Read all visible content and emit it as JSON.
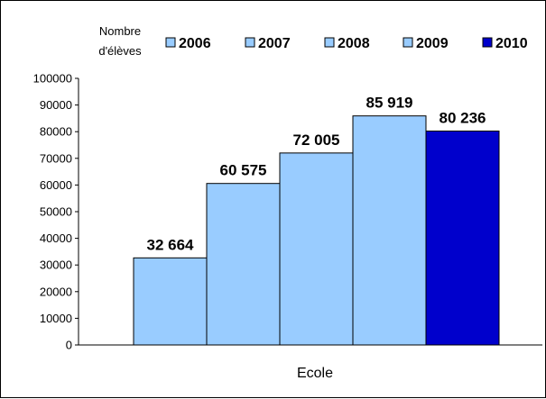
{
  "chart_data": {
    "type": "bar",
    "ylabel_lines": [
      "Nombre",
      "d'élèves"
    ],
    "xlabel": "Ecole",
    "categories": [
      "Ecole"
    ],
    "ylim": [
      0,
      100000
    ],
    "yticks": [
      "0",
      "10000",
      "20000",
      "30000",
      "40000",
      "50000",
      "60000",
      "70000",
      "80000",
      "90000",
      "100000"
    ],
    "legend_position": "top",
    "grid": false,
    "series": [
      {
        "name": "2006",
        "value": 32664,
        "label": "32 664",
        "color": "#99ccff"
      },
      {
        "name": "2007",
        "value": 60575,
        "label": "60 575",
        "color": "#99ccff"
      },
      {
        "name": "2008",
        "value": 72005,
        "label": "72 005",
        "color": "#99ccff"
      },
      {
        "name": "2009",
        "value": 85919,
        "label": "85 919",
        "color": "#99ccff"
      },
      {
        "name": "2010",
        "value": 80236,
        "label": "80 236",
        "color": "#0000cc"
      }
    ]
  }
}
